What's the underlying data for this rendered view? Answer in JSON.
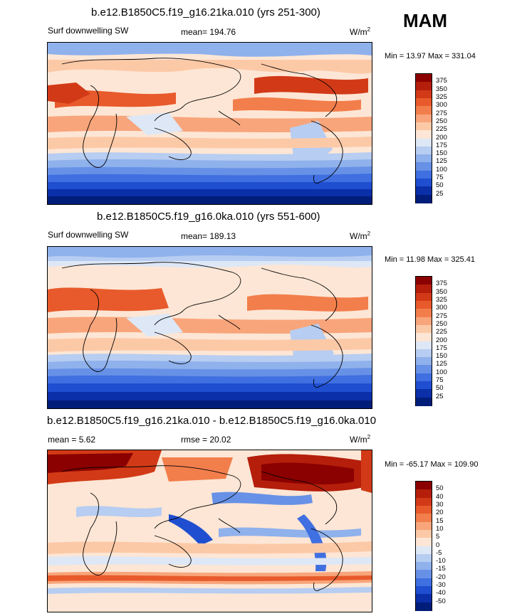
{
  "season": "MAM",
  "panels": [
    {
      "title": "b.e12.B1850C5.f19_g16.21ka.010 (yrs 251-300)",
      "left_label": "Surf downwelling SW",
      "stat_label": "mean= 194.76",
      "units_main": "W/m",
      "units_sup": "2",
      "minmax": "Min =  13.97 Max = 331.04",
      "levels": [
        "375",
        "350",
        "325",
        "300",
        "275",
        "250",
        "225",
        "200",
        "175",
        "150",
        "125",
        "100",
        "75",
        "50",
        "25"
      ],
      "colors": [
        "#8b0000",
        "#b41e0b",
        "#d23a17",
        "#e85a2b",
        "#f27e4c",
        "#f8a57b",
        "#fcc9a7",
        "#fde6d5",
        "#dde7f6",
        "#b7cdf1",
        "#8fb1ec",
        "#6791e6",
        "#3f6fe0",
        "#1f4fd0",
        "#0a2fa8",
        "#001d7a"
      ],
      "chart_data": {
        "type": "heatmap",
        "title": "b.e12.B1850C5.f19_g16.21ka.010 (yrs 251-300)",
        "variable": "Surf downwelling SW",
        "mean": 194.76,
        "min": 13.97,
        "max": 331.04,
        "contour_levels": [
          25,
          50,
          75,
          100,
          125,
          150,
          175,
          200,
          225,
          250,
          275,
          300,
          325,
          350,
          375
        ]
      }
    },
    {
      "title": "b.e12.B1850C5.f19_g16.0ka.010 (yrs 551-600)",
      "left_label": "Surf downwelling SW",
      "stat_label": "mean= 189.13",
      "units_main": "W/m",
      "units_sup": "2",
      "minmax": "Min =  11.98 Max = 325.41",
      "levels": [
        "375",
        "350",
        "325",
        "300",
        "275",
        "250",
        "225",
        "200",
        "175",
        "150",
        "125",
        "100",
        "75",
        "50",
        "25"
      ],
      "colors": [
        "#8b0000",
        "#b41e0b",
        "#d23a17",
        "#e85a2b",
        "#f27e4c",
        "#f8a57b",
        "#fcc9a7",
        "#fde6d5",
        "#dde7f6",
        "#b7cdf1",
        "#8fb1ec",
        "#6791e6",
        "#3f6fe0",
        "#1f4fd0",
        "#0a2fa8",
        "#001d7a"
      ],
      "chart_data": {
        "type": "heatmap",
        "title": "b.e12.B1850C5.f19_g16.0ka.010 (yrs 551-600)",
        "variable": "Surf downwelling SW",
        "mean": 189.13,
        "min": 11.98,
        "max": 325.41,
        "contour_levels": [
          25,
          50,
          75,
          100,
          125,
          150,
          175,
          200,
          225,
          250,
          275,
          300,
          325,
          350,
          375
        ]
      }
    },
    {
      "title": "b.e12.B1850C5.f19_g16.21ka.010 - b.e12.B1850C5.f19_g16.0ka.010",
      "left_label": "mean =   5.62",
      "stat_label": "rmse =  20.02",
      "units_main": "W/m",
      "units_sup": "2",
      "minmax": "Min = -65.17 Max = 109.90",
      "levels": [
        "50",
        "40",
        "30",
        "20",
        "15",
        "10",
        "5",
        "0",
        "-5",
        "-10",
        "-15",
        "-20",
        "-30",
        "-40",
        "-50"
      ],
      "colors": [
        "#8b0000",
        "#b41e0b",
        "#d23a17",
        "#e85a2b",
        "#f27e4c",
        "#f8a57b",
        "#fcc9a7",
        "#fde6d5",
        "#dde7f6",
        "#b7cdf1",
        "#8fb1ec",
        "#6791e6",
        "#3f6fe0",
        "#1f4fd0",
        "#0a2fa8",
        "#001d7a"
      ],
      "chart_data": {
        "type": "heatmap",
        "title": "b.e12.B1850C5.f19_g16.21ka.010 - b.e12.B1850C5.f19_g16.0ka.010",
        "variable": "difference",
        "mean": 5.62,
        "rmse": 20.02,
        "min": -65.17,
        "max": 109.9,
        "contour_levels": [
          -50,
          -40,
          -30,
          -20,
          -15,
          -10,
          -5,
          0,
          5,
          10,
          15,
          20,
          30,
          40,
          50
        ]
      }
    }
  ]
}
